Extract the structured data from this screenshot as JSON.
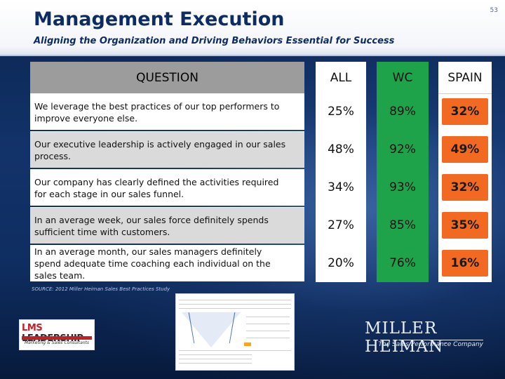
{
  "header": {
    "title": "Management Execution",
    "subtitle": "Aligning the Organization and Driving Behaviors Essential for Success",
    "page_number": "53"
  },
  "table": {
    "question_header": "QUESTION",
    "columns": [
      "ALL",
      "WC",
      "SPAIN"
    ],
    "rows": [
      {
        "question": "We leverage the best practices of our top performers to improve everyone else.",
        "all": "25%",
        "wc": "89%",
        "spain": "32%"
      },
      {
        "question": "Our executive leadership is actively engaged in our sales process.",
        "all": "48%",
        "wc": "92%",
        "spain": "49%"
      },
      {
        "question": "Our company has clearly defined the activities required for each stage in our sales funnel.",
        "all": "34%",
        "wc": "93%",
        "spain": "32%"
      },
      {
        "question": "In an average week, our sales force definitely spends sufficient time with customers.",
        "all": "27%",
        "wc": "85%",
        "spain": "35%"
      },
      {
        "question": "In an average month, our sales managers definitely spend adequate time coaching each individual on the sales team.",
        "all": "20%",
        "wc": "76%",
        "spain": "16%"
      }
    ],
    "colors": {
      "question_header": "#9c9c9c",
      "wc_column": "#1fa34a",
      "spain_highlight": "#f26a21"
    }
  },
  "source_note": "SOURCE: 2012 Miller Heiman Sales Best Practices Study",
  "logos": {
    "lms": {
      "main_red": "LMS",
      "main_rest": " LEADERSHIP",
      "tagline": "Marketing & Sales Consultants"
    },
    "miller_heiman": {
      "main": "MILLER HEIMAN",
      "tagline": "The Sales Performance Company"
    }
  }
}
